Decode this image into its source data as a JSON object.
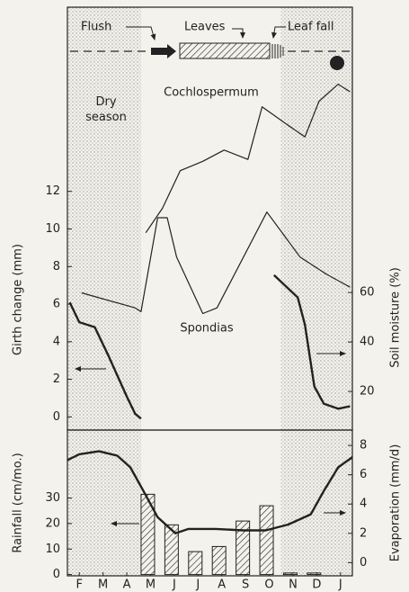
{
  "chart_data": [
    {
      "type": "line",
      "xlim": [
        -0.5,
        11.5
      ],
      "ylabel": "Girth change (mm)",
      "y2label": "Soil moisture (%)",
      "ylim": [
        -0.7,
        21.8
      ],
      "yticks": [
        0,
        2,
        4,
        6,
        8,
        10,
        12
      ],
      "y2lim": [
        4.4,
        175.3
      ],
      "y2ticks": [
        20,
        40,
        60
      ],
      "shaded_periods": [
        [
          -0.5,
          2.6
        ],
        [
          8.5,
          11.5
        ]
      ],
      "shaded_label": "Dry season",
      "annotations": [
        "Flush",
        "Leaves",
        "Leaf fall"
      ],
      "series": [
        {
          "name": "Cochlospermum",
          "color": "#222222",
          "width": 1.2,
          "x": [
            2.8,
            3.5,
            4.25,
            5.2,
            6.1,
            7.1,
            7.7,
            8.7,
            9.5,
            10.1,
            10.9,
            11.4
          ],
          "values": [
            9.8,
            11.1,
            13.1,
            13.6,
            14.2,
            13.7,
            16.5,
            15.6,
            14.9,
            16.8,
            17.7,
            17.3
          ]
        },
        {
          "name": "Spondias",
          "color": "#222222",
          "width": 1.2,
          "x": [
            0.1,
            2.35,
            2.6,
            3.3,
            3.7,
            4.1,
            5.2,
            5.8,
            7.9,
            9.3,
            10.4,
            11.4
          ],
          "values": [
            6.6,
            5.8,
            5.6,
            10.6,
            10.6,
            8.5,
            5.5,
            5.8,
            10.9,
            8.5,
            7.6,
            6.9
          ]
        },
        {
          "axis": "y2",
          "color": "#222222",
          "width": 2.4,
          "x": [
            -0.4,
            0,
            0.65,
            1.2,
            2.0,
            2.35,
            2.6,
            5,
            8.2,
            9.2,
            9.5,
            9.9,
            10.3,
            10.9,
            11.4
          ],
          "values": [
            56,
            48,
            46,
            35,
            18,
            11,
            9,
            null,
            67,
            58,
            47,
            22,
            15,
            13,
            14
          ]
        }
      ]
    },
    {
      "type": "combo",
      "xlim": [
        -0.5,
        11.5
      ],
      "xticks": [
        {
          "value": 0,
          "label": "F"
        },
        {
          "value": 1,
          "label": "M"
        },
        {
          "value": 2,
          "label": "A"
        },
        {
          "value": 3,
          "label": "M"
        },
        {
          "value": 4,
          "label": "J"
        },
        {
          "value": 5,
          "label": "J"
        },
        {
          "value": 6,
          "label": "A"
        },
        {
          "value": 7,
          "label": "S"
        },
        {
          "value": 8,
          "label": "O"
        },
        {
          "value": 9,
          "label": "N"
        },
        {
          "value": 10,
          "label": "D"
        },
        {
          "value": 11,
          "label": "J"
        }
      ],
      "ylabel": "Rainfall (cm/mo.)",
      "y2label": "Evaporation (mm/d)",
      "ylim": [
        -0.5,
        56.7
      ],
      "yticks": [
        0,
        10,
        20,
        30
      ],
      "y2lim": [
        -0.9,
        9.05
      ],
      "y2ticks": [
        0,
        2,
        4,
        6,
        8
      ],
      "shaded_periods": [
        [
          -0.5,
          2.6
        ],
        [
          8.5,
          11.5
        ]
      ],
      "series": [
        {
          "type": "bar",
          "color": "#222222",
          "x": [
            3,
            4,
            5,
            6,
            7,
            8,
            9,
            10
          ],
          "values": [
            31.5,
            19.5,
            9,
            11,
            21,
            27,
            0.6,
            0.6
          ]
        },
        {
          "type": "line",
          "axis": "y2",
          "color": "#222222",
          "width": 2.4,
          "x": [
            -0.5,
            0,
            0.83,
            1.6,
            2.15,
            2.7,
            3.3,
            4.05,
            4.6,
            5.75,
            6.9,
            7.85,
            8.8,
            9.75,
            10.3,
            10.9,
            11.5
          ],
          "values": [
            7.0,
            7.4,
            7.6,
            7.3,
            6.5,
            4.9,
            3.1,
            2.0,
            2.3,
            2.3,
            2.2,
            2.2,
            2.6,
            3.3,
            4.9,
            6.5,
            7.2
          ]
        }
      ]
    }
  ]
}
